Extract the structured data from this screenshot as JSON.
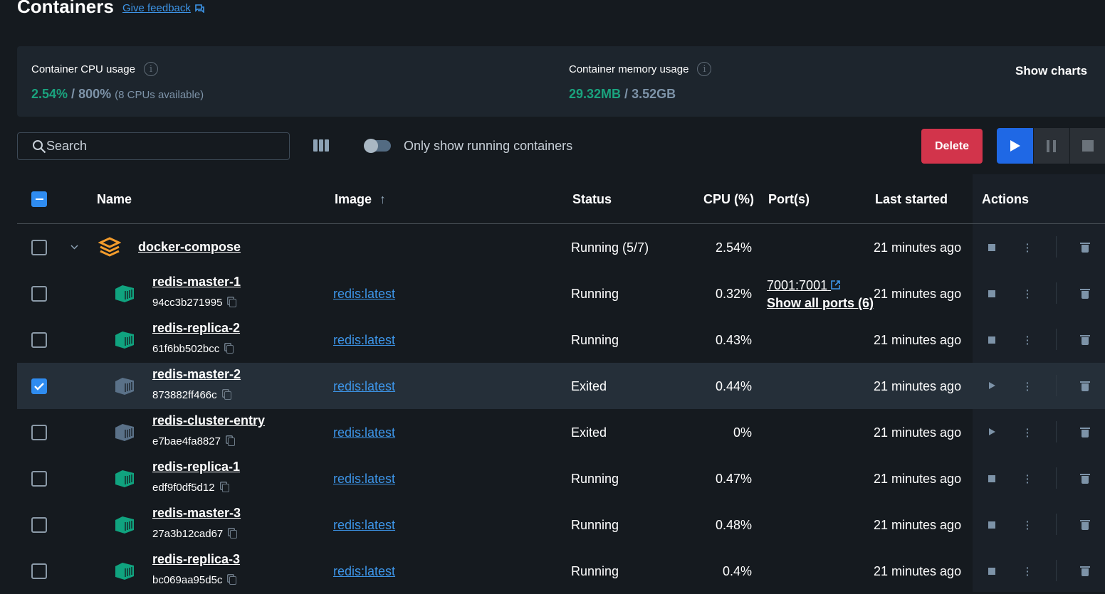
{
  "page": {
    "title": "Containers",
    "feedback_label": "Give feedback"
  },
  "stats": {
    "cpu": {
      "label": "Container CPU usage",
      "used": "2.54%",
      "sep": " / ",
      "total": "800%",
      "note": "(8 CPUs available)"
    },
    "memory": {
      "label": "Container memory usage",
      "used": "29.32MB",
      "sep": " / ",
      "total": "3.52GB"
    },
    "show_charts": "Show charts"
  },
  "toolbar": {
    "search_placeholder": "Search",
    "toggle_label": "Only show running containers",
    "toggle_on": false,
    "delete_label": "Delete"
  },
  "table": {
    "headers": {
      "name": "Name",
      "image": "Image",
      "status": "Status",
      "cpu": "CPU (%)",
      "ports": "Port(s)",
      "last_started": "Last started",
      "actions": "Actions"
    },
    "sort": {
      "column": "Image",
      "direction": "ascending"
    },
    "group": {
      "name": "docker-compose",
      "status": "Running (5/7)",
      "cpu": "2.54%",
      "last_started": "21 minutes ago",
      "expanded": true,
      "selected": false,
      "icon": "stack-icon",
      "icon_color": "#f39c2c"
    },
    "rows": [
      {
        "name": "redis-master-1",
        "id": "94cc3b271995",
        "image": "redis:latest",
        "status": "Running",
        "cpu": "0.32%",
        "port": "7001:7001",
        "ports_more": "Show all ports (6)",
        "last_started": "21 minutes ago",
        "selected": false,
        "running": true
      },
      {
        "name": "redis-replica-2",
        "id": "61f6bb502bcc",
        "image": "redis:latest",
        "status": "Running",
        "cpu": "0.43%",
        "last_started": "21 minutes ago",
        "selected": false,
        "running": true
      },
      {
        "name": "redis-master-2",
        "id": "873882ff466c",
        "image": "redis:latest",
        "status": "Exited",
        "cpu": "0.44%",
        "last_started": "21 minutes ago",
        "selected": true,
        "running": false
      },
      {
        "name": "redis-cluster-entry",
        "id": "e7bae4fa8827",
        "image": "redis:latest",
        "status": "Exited",
        "cpu": "0%",
        "last_started": "21 minutes ago",
        "selected": false,
        "running": false
      },
      {
        "name": "redis-replica-1",
        "id": "edf9f0df5d12",
        "image": "redis:latest",
        "status": "Running",
        "cpu": "0.47%",
        "last_started": "21 minutes ago",
        "selected": false,
        "running": true
      },
      {
        "name": "redis-master-3",
        "id": "27a3b12cad67",
        "image": "redis:latest",
        "status": "Running",
        "cpu": "0.48%",
        "last_started": "21 minutes ago",
        "selected": false,
        "running": true
      },
      {
        "name": "redis-replica-3",
        "id": "bc069aa95d5c",
        "image": "redis:latest",
        "status": "Running",
        "cpu": "0.4%",
        "last_started": "21 minutes ago",
        "selected": false,
        "running": true
      }
    ]
  },
  "colors": {
    "running": "#10a37f",
    "exited": "#5a7188",
    "accent": "#1f68e5",
    "danger": "#d2344b"
  }
}
